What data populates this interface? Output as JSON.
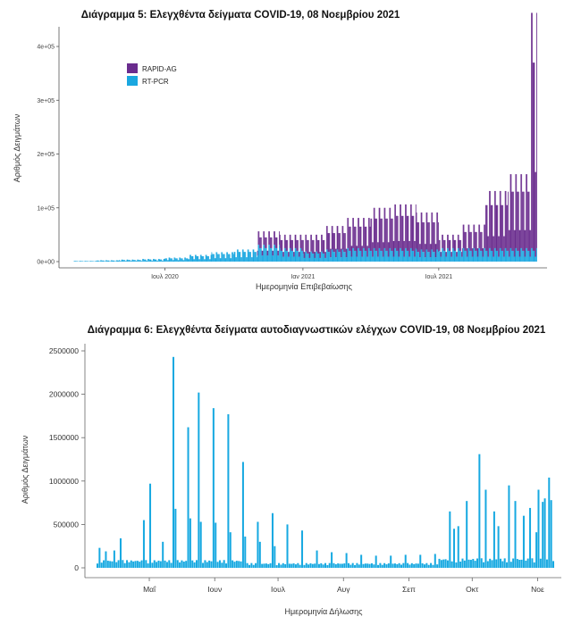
{
  "chart_data": [
    {
      "type": "bar",
      "title": "Διάγραμμα 5: Ελεγχθέντα δείγματα COVID-19, 08 Νοεμβρίου 2021",
      "xlabel": "Ημερομηνία Επιβεβαίωσης",
      "ylabel": "Αριθμός Δειγμάτων",
      "stacked": true,
      "x_range": [
        "2020-03-01",
        "2021-11-08"
      ],
      "ylim": [
        0,
        420000
      ],
      "y_ticks": [
        0,
        100000,
        200000,
        300000,
        400000
      ],
      "y_tick_labels": [
        "0e+00",
        "1e+05",
        "2e+05",
        "3e+05",
        "4e+05"
      ],
      "x_ticks": [
        "2020-07-01",
        "2021-01-01",
        "2021-07-01"
      ],
      "x_tick_labels": [
        "Ιουλ 2020",
        "Ιαν 2021",
        "Ιουλ 2021"
      ],
      "legend_position": "top-left",
      "grid": false,
      "series": [
        {
          "name": "RAPID-AG",
          "color": "#6a2c8e",
          "monthly_typical": [
            [
              "2020-03",
              0
            ],
            [
              "2020-04",
              0
            ],
            [
              "2020-05",
              0
            ],
            [
              "2020-06",
              0
            ],
            [
              "2020-07",
              0
            ],
            [
              "2020-08",
              0
            ],
            [
              "2020-09",
              0
            ],
            [
              "2020-10",
              0
            ],
            [
              "2020-11",
              20000
            ],
            [
              "2020-12",
              20000
            ],
            [
              "2021-01",
              25000
            ],
            [
              "2021-02",
              35000
            ],
            [
              "2021-03",
              45000
            ],
            [
              "2021-04",
              60000
            ],
            [
              "2021-05",
              65000
            ],
            [
              "2021-06",
              55000
            ],
            [
              "2021-07",
              20000
            ],
            [
              "2021-08",
              35000
            ],
            [
              "2021-09",
              85000
            ],
            [
              "2021-10",
              110000
            ],
            [
              "2021-11",
              350000
            ]
          ]
        },
        {
          "name": "RT-PCR",
          "color": "#1aa7e0",
          "monthly_typical": [
            [
              "2020-03",
              1000
            ],
            [
              "2020-04",
              2000
            ],
            [
              "2020-05",
              3000
            ],
            [
              "2020-06",
              4000
            ],
            [
              "2020-07",
              6000
            ],
            [
              "2020-08",
              10000
            ],
            [
              "2020-09",
              14000
            ],
            [
              "2020-10",
              18000
            ],
            [
              "2020-11",
              25000
            ],
            [
              "2020-12",
              20000
            ],
            [
              "2021-01",
              15000
            ],
            [
              "2021-02",
              18000
            ],
            [
              "2021-03",
              20000
            ],
            [
              "2021-04",
              20000
            ],
            [
              "2021-05",
              20000
            ],
            [
              "2021-06",
              18000
            ],
            [
              "2021-07",
              20000
            ],
            [
              "2021-08",
              20000
            ],
            [
              "2021-09",
              20000
            ],
            [
              "2021-10",
              20000
            ],
            [
              "2021-11",
              20000
            ]
          ]
        }
      ]
    },
    {
      "type": "bar",
      "title": "Διάγραμμα 6: Ελεγχθέντα δείγματα αυτοδιαγνωστικών ελέγχων COVID-19, 08 Νοεμβρίου 2021",
      "xlabel": "Ημερομηνία Δήλωσης",
      "ylabel": "Αριθμός Δειγμάτων",
      "color": "#17a9e1",
      "x_range": [
        "2021-04-06",
        "2021-11-08"
      ],
      "ylim": [
        0,
        2500000
      ],
      "y_ticks": [
        0,
        500000,
        1000000,
        1500000,
        2000000,
        2500000
      ],
      "y_tick_labels": [
        "0",
        "500000",
        "1000000",
        "1500000",
        "2000000",
        "2500000"
      ],
      "x_tick_labels": [
        "Μαΐ",
        "Ιουν",
        "Ιουλ",
        "Αυγ",
        "Σεπ",
        "Οκτ",
        "Νοε"
      ],
      "x_ticks": [
        "2021-05-01",
        "2021-06-01",
        "2021-07-01",
        "2021-08-01",
        "2021-09-01",
        "2021-10-01",
        "2021-11-01"
      ],
      "grid": false,
      "peaks": [
        [
          "2021-04-07",
          230000
        ],
        [
          "2021-04-10",
          190000
        ],
        [
          "2021-04-14",
          200000
        ],
        [
          "2021-04-17",
          340000
        ],
        [
          "2021-04-28",
          550000
        ],
        [
          "2021-05-01",
          970000
        ],
        [
          "2021-05-07",
          300000
        ],
        [
          "2021-05-12",
          2430000
        ],
        [
          "2021-05-13",
          680000
        ],
        [
          "2021-05-19",
          1620000
        ],
        [
          "2021-05-20",
          570000
        ],
        [
          "2021-05-24",
          2020000
        ],
        [
          "2021-05-25",
          530000
        ],
        [
          "2021-05-31",
          1840000
        ],
        [
          "2021-06-01",
          520000
        ],
        [
          "2021-06-07",
          1770000
        ],
        [
          "2021-06-08",
          410000
        ],
        [
          "2021-06-14",
          1220000
        ],
        [
          "2021-06-15",
          360000
        ],
        [
          "2021-06-21",
          530000
        ],
        [
          "2021-06-22",
          300000
        ],
        [
          "2021-06-28",
          630000
        ],
        [
          "2021-06-29",
          250000
        ],
        [
          "2021-07-05",
          500000
        ],
        [
          "2021-07-12",
          430000
        ],
        [
          "2021-07-19",
          200000
        ],
        [
          "2021-07-26",
          180000
        ],
        [
          "2021-08-02",
          170000
        ],
        [
          "2021-08-09",
          150000
        ],
        [
          "2021-08-16",
          140000
        ],
        [
          "2021-08-23",
          140000
        ],
        [
          "2021-08-30",
          150000
        ],
        [
          "2021-09-06",
          150000
        ],
        [
          "2021-09-13",
          160000
        ],
        [
          "2021-09-20",
          650000
        ],
        [
          "2021-09-22",
          450000
        ],
        [
          "2021-09-24",
          480000
        ],
        [
          "2021-09-28",
          770000
        ],
        [
          "2021-10-04",
          1310000
        ],
        [
          "2021-10-07",
          900000
        ],
        [
          "2021-10-11",
          650000
        ],
        [
          "2021-10-13",
          480000
        ],
        [
          "2021-10-18",
          950000
        ],
        [
          "2021-10-21",
          770000
        ],
        [
          "2021-10-25",
          600000
        ],
        [
          "2021-10-28",
          690000
        ],
        [
          "2021-10-31",
          410000
        ],
        [
          "2021-11-01",
          900000
        ],
        [
          "2021-11-03",
          760000
        ],
        [
          "2021-11-04",
          800000
        ],
        [
          "2021-11-06",
          1040000
        ],
        [
          "2021-11-07",
          780000
        ]
      ]
    }
  ]
}
